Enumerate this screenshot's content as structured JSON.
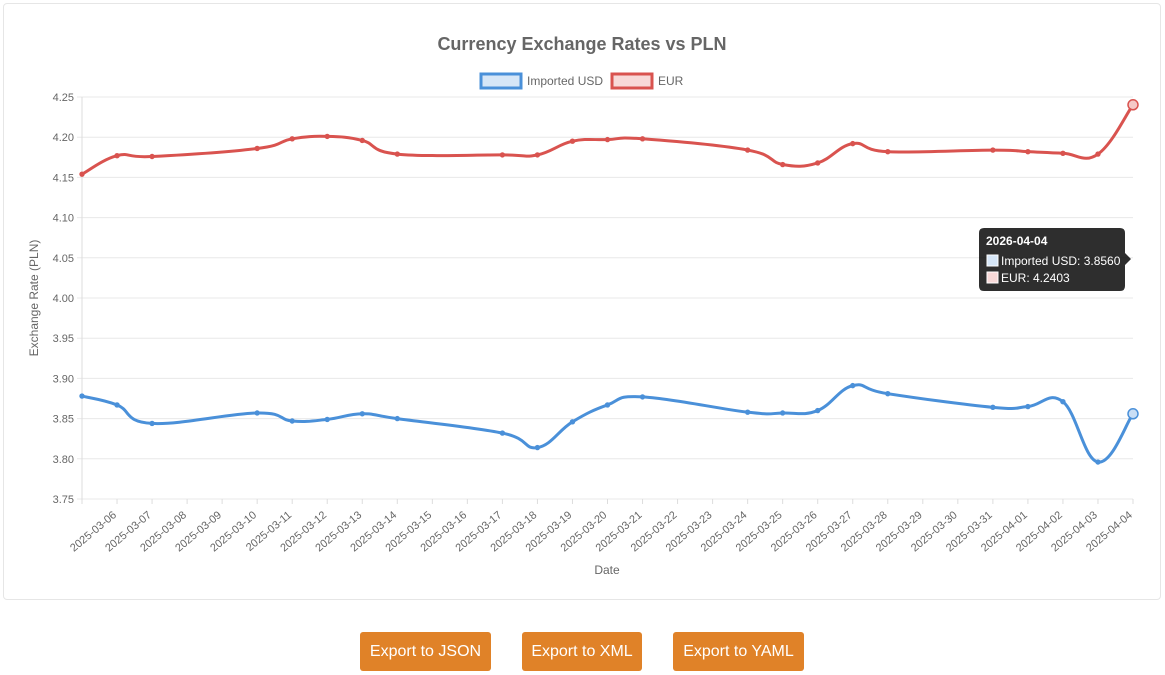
{
  "chart_data": {
    "type": "line",
    "title": "Currency Exchange Rates vs PLN",
    "xlabel": "Date",
    "ylabel": "Exchange Rate (PLN)",
    "ylim": [
      3.75,
      4.25
    ],
    "yticks": [
      "3.75",
      "3.80",
      "3.85",
      "3.90",
      "3.95",
      "4.00",
      "4.05",
      "4.10",
      "4.15",
      "4.20",
      "4.25"
    ],
    "categories": [
      "2025-03-06",
      "2025-03-07",
      "2025-03-08",
      "2025-03-09",
      "2025-03-10",
      "2025-03-11",
      "2025-03-12",
      "2025-03-13",
      "2025-03-14",
      "2025-03-15",
      "2025-03-16",
      "2025-03-17",
      "2025-03-18",
      "2025-03-19",
      "2025-03-20",
      "2025-03-21",
      "2025-03-22",
      "2025-03-23",
      "2025-03-24",
      "2025-03-25",
      "2025-03-26",
      "2025-03-27",
      "2025-03-28",
      "2025-03-29",
      "2025-03-30",
      "2025-03-31",
      "2025-04-01",
      "2025-04-02",
      "2025-04-03",
      "2025-04-04"
    ],
    "grid": true,
    "legend": "top",
    "series": [
      {
        "name": "Imported USD",
        "color": "#4a90d9",
        "points": [
          [
            "2025-03-05",
            3.878
          ],
          [
            "2025-03-06",
            3.867
          ],
          [
            "2025-03-07",
            3.844
          ],
          [
            "2025-03-10",
            3.857
          ],
          [
            "2025-03-11",
            3.847
          ],
          [
            "2025-03-12",
            3.849
          ],
          [
            "2025-03-13",
            3.856
          ],
          [
            "2025-03-14",
            3.85
          ],
          [
            "2025-03-17",
            3.832
          ],
          [
            "2025-03-18",
            3.814
          ],
          [
            "2025-03-19",
            3.846
          ],
          [
            "2025-03-20",
            3.867
          ],
          [
            "2025-03-21",
            3.877
          ],
          [
            "2025-03-24",
            3.858
          ],
          [
            "2025-03-25",
            3.857
          ],
          [
            "2025-03-26",
            3.86
          ],
          [
            "2025-03-27",
            3.891
          ],
          [
            "2025-03-28",
            3.881
          ],
          [
            "2025-03-31",
            3.864
          ],
          [
            "2025-04-01",
            3.865
          ],
          [
            "2025-04-02",
            3.871
          ],
          [
            "2025-04-03",
            3.796
          ],
          [
            "2025-04-04",
            3.856
          ]
        ]
      },
      {
        "name": "EUR",
        "color": "#d9534f",
        "points": [
          [
            "2025-03-05",
            4.154
          ],
          [
            "2025-03-06",
            4.177
          ],
          [
            "2025-03-07",
            4.176
          ],
          [
            "2025-03-10",
            4.186
          ],
          [
            "2025-03-11",
            4.198
          ],
          [
            "2025-03-12",
            4.201
          ],
          [
            "2025-03-13",
            4.196
          ],
          [
            "2025-03-14",
            4.179
          ],
          [
            "2025-03-17",
            4.178
          ],
          [
            "2025-03-18",
            4.178
          ],
          [
            "2025-03-19",
            4.195
          ],
          [
            "2025-03-20",
            4.197
          ],
          [
            "2025-03-21",
            4.198
          ],
          [
            "2025-03-24",
            4.184
          ],
          [
            "2025-03-25",
            4.166
          ],
          [
            "2025-03-26",
            4.168
          ],
          [
            "2025-03-27",
            4.192
          ],
          [
            "2025-03-28",
            4.182
          ],
          [
            "2025-03-31",
            4.184
          ],
          [
            "2025-04-01",
            4.182
          ],
          [
            "2025-04-02",
            4.18
          ],
          [
            "2025-04-03",
            4.179
          ],
          [
            "2025-04-04",
            4.2403
          ]
        ]
      }
    ],
    "tooltip": {
      "title": "2026-04-04",
      "lines": [
        "Imported USD: 3.8560",
        "EUR: 4.2403"
      ]
    }
  },
  "buttons": {
    "json": "Export to JSON",
    "xml": "Export to XML",
    "yaml": "Export to YAML"
  }
}
